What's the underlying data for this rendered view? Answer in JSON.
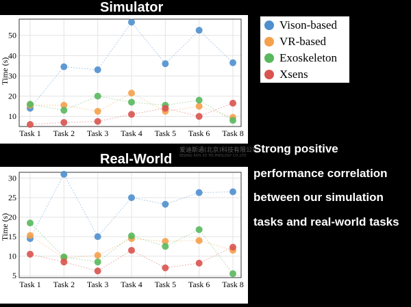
{
  "chart_data": [
    {
      "type": "line",
      "title": "Simulator",
      "xlabel": "",
      "ylabel": "Time (s)",
      "categories": [
        "Task 1",
        "Task 2",
        "Task 3",
        "Task 4",
        "Task 5",
        "Task 6",
        "Task 8"
      ],
      "ylim": [
        5,
        58
      ],
      "yticks": [
        10,
        20,
        30,
        40,
        50
      ],
      "grid": true,
      "series": [
        {
          "name": "Vison-based",
          "color": "#4f8fce",
          "values": [
            14,
            34.5,
            33,
            56.5,
            36,
            52.5,
            36.5
          ]
        },
        {
          "name": "VR-based",
          "color": "#f5a04b",
          "values": [
            15.5,
            15.5,
            12.5,
            21.5,
            12.5,
            15,
            9.5
          ]
        },
        {
          "name": "Exoskeleton",
          "color": "#59b85e",
          "values": [
            16,
            13,
            20,
            17,
            15.5,
            18,
            8
          ]
        },
        {
          "name": "Xsens",
          "color": "#d9534f",
          "values": [
            6,
            7,
            7.5,
            11,
            14,
            10,
            16.5
          ]
        }
      ]
    },
    {
      "type": "line",
      "title": "Real-World",
      "xlabel": "",
      "ylabel": "Time (s)",
      "categories": [
        "Task 1",
        "Task 2",
        "Task 3",
        "Task 4",
        "Task 5",
        "Task 6",
        "Task 8"
      ],
      "ylim": [
        4.5,
        31.5
      ],
      "yticks": [
        5,
        10,
        15,
        20,
        25,
        30
      ],
      "grid": true,
      "series": [
        {
          "name": "Vison-based",
          "color": "#4f8fce",
          "values": [
            14.5,
            31,
            15,
            25,
            23.3,
            26.3,
            26.5
          ]
        },
        {
          "name": "VR-based",
          "color": "#f5a04b",
          "values": [
            15.3,
            9.5,
            10.2,
            14.5,
            13.8,
            14,
            11.5
          ]
        },
        {
          "name": "Exoskeleton",
          "color": "#59b85e",
          "values": [
            18.5,
            9.8,
            8.5,
            15.2,
            12.5,
            16.8,
            5.5
          ]
        },
        {
          "name": "Xsens",
          "color": "#d9534f",
          "values": [
            10.5,
            8.5,
            6.2,
            11.5,
            7,
            8.2,
            12.3
          ]
        }
      ]
    }
  ],
  "caption": {
    "lines": [
      "Strong positive",
      "performance correlation",
      "between our simulation",
      "tasks and real-world tasks"
    ]
  },
  "watermark": {
    "text": "爱迪斯通(北京)科技有限公司",
    "subtext": "BEIJING AXIS 3D TECHNOLOGY CO.,LTD."
  }
}
